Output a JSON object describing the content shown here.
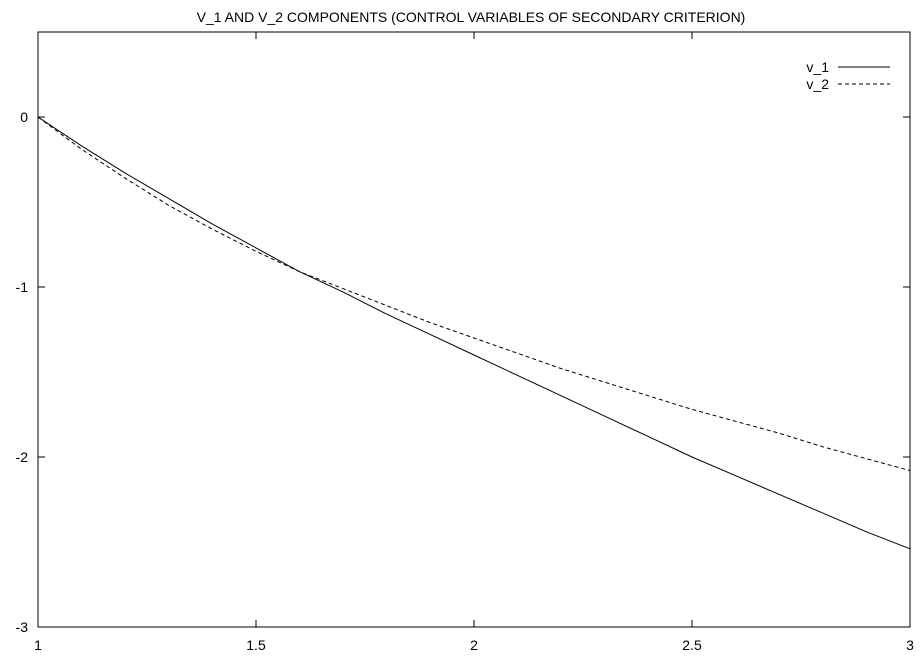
{
  "chart_data": {
    "type": "line",
    "title": "V_1 AND V_2 COMPONENTS (CONTROL VARIABLES OF SECONDARY CRITERION)",
    "xlabel": "",
    "ylabel": "",
    "xlim": [
      1,
      3
    ],
    "ylim": [
      -3,
      0.5
    ],
    "x_ticks": [
      1,
      1.5,
      2,
      2.5,
      3
    ],
    "x_tick_labels": [
      "1",
      "1.5",
      "2",
      "2.5",
      "3"
    ],
    "y_ticks": [
      0,
      -1,
      -2,
      -3
    ],
    "y_tick_labels": [
      "0",
      "-1",
      "-2",
      "-3"
    ],
    "grid": false,
    "legend_position": "top-right",
    "series": [
      {
        "name": "v_1",
        "style": "solid",
        "color": "#000000",
        "x": [
          1.0,
          1.1,
          1.2,
          1.3,
          1.4,
          1.5,
          1.6,
          1.7,
          1.8,
          1.9,
          2.0,
          2.1,
          2.2,
          2.3,
          2.4,
          2.5,
          2.6,
          2.7,
          2.8,
          2.9,
          3.0
        ],
        "y": [
          0.0,
          -0.17,
          -0.33,
          -0.48,
          -0.63,
          -0.77,
          -0.91,
          -1.03,
          -1.16,
          -1.28,
          -1.4,
          -1.52,
          -1.64,
          -1.76,
          -1.88,
          -2.0,
          -2.11,
          -2.22,
          -2.33,
          -2.44,
          -2.54
        ]
      },
      {
        "name": "v_2",
        "style": "dashed",
        "color": "#000000",
        "x": [
          1.0,
          1.1,
          1.2,
          1.3,
          1.4,
          1.5,
          1.6,
          1.7,
          1.8,
          1.9,
          2.0,
          2.1,
          2.2,
          2.3,
          2.4,
          2.5,
          2.6,
          2.7,
          2.8,
          2.9,
          3.0
        ],
        "y": [
          0.0,
          -0.19,
          -0.36,
          -0.52,
          -0.66,
          -0.79,
          -0.91,
          -1.01,
          -1.11,
          -1.21,
          -1.3,
          -1.39,
          -1.48,
          -1.56,
          -1.64,
          -1.72,
          -1.79,
          -1.86,
          -1.94,
          -2.01,
          -2.08
        ]
      }
    ]
  }
}
